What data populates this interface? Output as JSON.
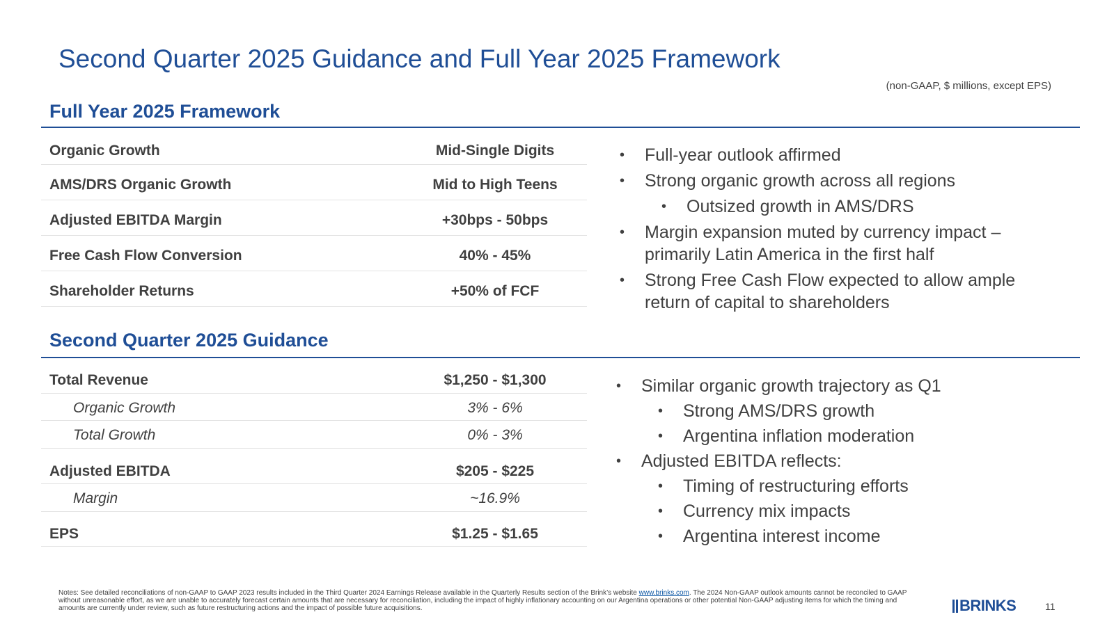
{
  "title": "Second Quarter 2025 Guidance and Full Year 2025 Framework",
  "units_note": "(non-GAAP, $ millions, except EPS)",
  "framework": {
    "heading": "Full Year 2025 Framework",
    "rows": [
      {
        "label": "Organic Growth",
        "value": "Mid-Single Digits"
      },
      {
        "label": "AMS/DRS Organic Growth",
        "value": "Mid to High Teens"
      },
      {
        "label": "Adjusted EBITDA Margin",
        "value": "+30bps - 50bps"
      },
      {
        "label": "Free Cash Flow Conversion",
        "value": "40% - 45%"
      },
      {
        "label": "Shareholder Returns",
        "value": "+50% of FCF"
      }
    ],
    "bullets": [
      {
        "text": "Full-year outlook affirmed"
      },
      {
        "text": "Strong organic growth across all regions"
      },
      {
        "text": "Outsized growth in AMS/DRS"
      },
      {
        "text": "Margin expansion muted by currency impact –"
      },
      {
        "text": "primarily Latin America in the first half"
      },
      {
        "text": "Strong Free Cash Flow expected to allow ample"
      },
      {
        "text": "return of capital to shareholders"
      }
    ]
  },
  "guidance": {
    "heading": "Second Quarter 2025 Guidance",
    "rows": [
      {
        "label": "Total Revenue",
        "value": "$1,250 - $1,300"
      },
      {
        "label": "Organic Growth",
        "value": "3% - 6%"
      },
      {
        "label": "Total Growth",
        "value": "0% - 3%"
      },
      {
        "label": "Adjusted EBITDA",
        "value": "$205 - $225"
      },
      {
        "label": "Margin",
        "value": "~16.9%"
      },
      {
        "label": "EPS",
        "value": "$1.25 - $1.65"
      }
    ],
    "bullets": [
      {
        "text": "Similar organic growth trajectory as Q1"
      },
      {
        "text": "Strong AMS/DRS growth"
      },
      {
        "text": "Argentina inflation moderation"
      },
      {
        "text": "Adjusted EBITDA reflects:"
      },
      {
        "text": "Timing of restructuring efforts"
      },
      {
        "text": "Currency mix impacts"
      },
      {
        "text": "Argentina interest income"
      }
    ]
  },
  "notes": {
    "before_link": "Notes: See detailed reconciliations of non-GAAP to GAAP 2023 results included in the Third Quarter 2024 Earnings Release available in the Quarterly Results section of the Brink’s website ",
    "link_text": "www.brinks.com",
    "after_link": ". The 2024 Non-GAAP outlook amounts cannot be reconciled to GAAP without unreasonable effort, as we are unable to accurately forecast certain amounts that are necessary for reconciliation, including the impact of highly inflationary accounting on our Argentina operations or other potential Non-GAAP adjusting items for which the timing and amounts are currently under review, such as future restructuring actions and the impact of possible future acquisitions."
  },
  "logo_text": "BRINKS",
  "page_number": "11",
  "bullet_glyph": "•",
  "colors": {
    "accent": "#1f4e96",
    "text": "#404040",
    "rule": "#e3e3e3",
    "link": "#0b56a4"
  }
}
